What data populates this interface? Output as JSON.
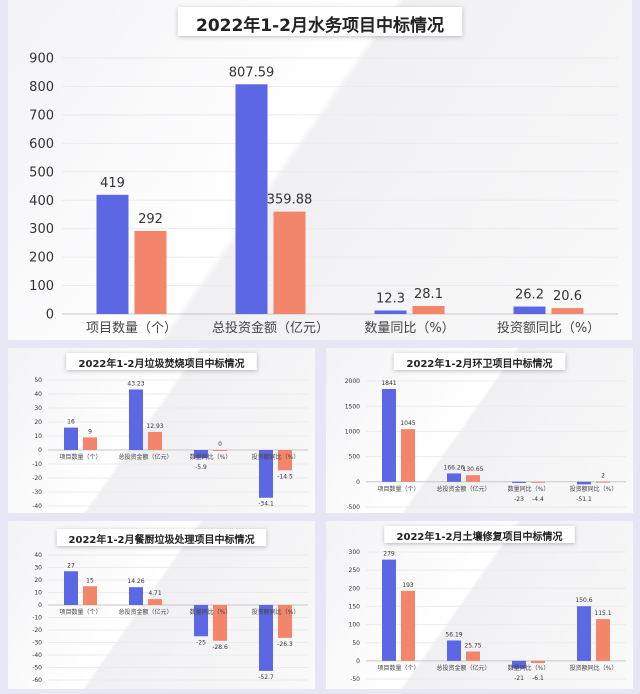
{
  "colors": {
    "series1": "#5b67e3",
    "series2": "#f2856a",
    "frame": "#e6e6f4"
  },
  "chart_data": [
    {
      "type": "bar",
      "title": "2022年1-2月水务项目中标情况",
      "categories": [
        "项目数量（个）",
        "总投资金额（亿元）",
        "数量同比（%）",
        "投资额同比（%）"
      ],
      "series": [
        {
          "values": [
            419,
            807.59,
            12.3,
            26.2
          ]
        },
        {
          "values": [
            292,
            359.88,
            28.1,
            20.6
          ]
        }
      ],
      "labels": [
        [
          "419",
          "807.59",
          "12.3",
          "26.2"
        ],
        [
          "292",
          "359.88",
          "28.1",
          "20.6"
        ]
      ],
      "ylim": [
        0,
        900
      ],
      "yticks": [
        0,
        100,
        200,
        300,
        400,
        500,
        600,
        700,
        800,
        900
      ],
      "grid": true
    },
    {
      "type": "bar",
      "title": "2022年1-2月垃圾焚烧项目中标情况",
      "categories": [
        "项目数量（个）",
        "总投资金额（亿元）",
        "数量同比（%）",
        "投资额同比（%）"
      ],
      "series": [
        {
          "values": [
            16,
            43.23,
            -5.9,
            -34.1
          ]
        },
        {
          "values": [
            9,
            12.93,
            0,
            -14.5
          ]
        }
      ],
      "labels": [
        [
          "16",
          "43.23",
          "-5.9",
          "-34.1"
        ],
        [
          "9",
          "12.93",
          "0",
          "-14.5"
        ]
      ],
      "ylim": [
        -40,
        50
      ],
      "yticks": [
        -40,
        -30,
        -20,
        -10,
        0,
        10,
        20,
        30,
        40,
        50
      ],
      "grid": true
    },
    {
      "type": "bar",
      "title": "2022年1-2月环卫项目中标情况",
      "categories": [
        "项目数量（个）",
        "总投资金额（亿元）",
        "数量同比（%）",
        "投资额同比（%）"
      ],
      "series": [
        {
          "values": [
            1841,
            166.26,
            -23,
            -51.1
          ]
        },
        {
          "values": [
            1045,
            130.65,
            -4.4,
            2
          ]
        }
      ],
      "labels": [
        [
          "1841",
          "166.26",
          "-23",
          "-51.1"
        ],
        [
          "1045",
          "130.65",
          "-4.4",
          "2"
        ]
      ],
      "ylim": [
        -500,
        2000
      ],
      "yticks": [
        -500,
        0,
        500,
        1000,
        1500,
        2000
      ],
      "grid": true
    },
    {
      "type": "bar",
      "title": "2022年1-2月餐厨垃圾处理项目中标情况",
      "categories": [
        "项目数量（个）",
        "总投资金额（亿元）",
        "数量同比（%）",
        "投资额同比（%）"
      ],
      "series": [
        {
          "values": [
            27,
            14.26,
            -25,
            -52.7
          ]
        },
        {
          "values": [
            15,
            4.71,
            -28.6,
            -26.3
          ]
        }
      ],
      "labels": [
        [
          "27",
          "14.26",
          "-25",
          "-52.7"
        ],
        [
          "15",
          "4.71",
          "-28.6",
          "-26.3"
        ]
      ],
      "ylim": [
        -60,
        40
      ],
      "yticks": [
        -60,
        -50,
        -40,
        -30,
        -20,
        -10,
        0,
        10,
        20,
        30,
        40
      ],
      "grid": true
    },
    {
      "type": "bar",
      "title": "2022年1-2月土壤修复项目中标情况",
      "categories": [
        "项目数量（个）",
        "总投资金额（亿元）",
        "数量同比（%）",
        "投资额同比（%）"
      ],
      "series": [
        {
          "values": [
            279,
            56.19,
            -21,
            150.6
          ]
        },
        {
          "values": [
            193,
            25.75,
            -6.1,
            115.1
          ]
        }
      ],
      "labels": [
        [
          "279",
          "56.19",
          "-21",
          "150.6"
        ],
        [
          "193",
          "25.75",
          "-6.1",
          "115.1"
        ]
      ],
      "ylim": [
        -50,
        300
      ],
      "yticks": [
        -50,
        0,
        50,
        100,
        150,
        200,
        250,
        300
      ],
      "grid": true
    }
  ]
}
